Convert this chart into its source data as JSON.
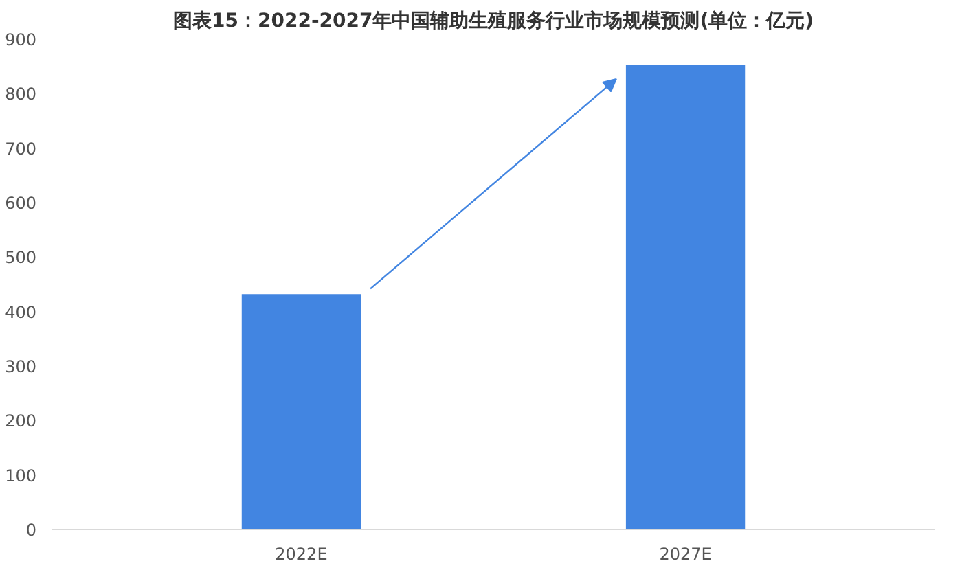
{
  "chart_data": {
    "type": "bar",
    "title": "图表15：2022-2027年中国辅助生殖服务行业市场规模预测(单位：亿元)",
    "categories": [
      "2022E",
      "2027E"
    ],
    "values": [
      432,
      852
    ],
    "color": "#4285e1",
    "ylim": [
      0,
      900
    ],
    "yticks": [
      0,
      100,
      200,
      300,
      400,
      500,
      600,
      700,
      800,
      900
    ],
    "grid": false
  }
}
